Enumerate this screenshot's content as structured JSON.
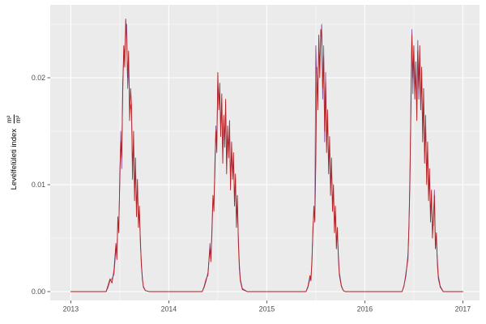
{
  "chart_data": {
    "type": "line",
    "title": "",
    "xlabel": "",
    "ylabel_text": "Levélfelületi index",
    "ylabel_unit_numerator": "m²",
    "ylabel_unit_denominator": "m²",
    "legend": "none",
    "grid": true,
    "panel_background": "#EBEBEB",
    "outer_background": "#FFFFFF",
    "gridline_color": "#FFFFFF",
    "tick_label_color": "#4D4D4D",
    "tick_mark_color": "#333333",
    "xlim": [
      2012.79,
      2017.17
    ],
    "ylim": [
      -0.00083,
      0.02682
    ],
    "x_ticks": [
      2013,
      2014,
      2015,
      2016,
      2017
    ],
    "x_tick_labels": [
      "2013",
      "2014",
      "2015",
      "2016",
      "2017"
    ],
    "x_minor_ticks": [
      2013.5,
      2014.5,
      2015.5,
      2016.5
    ],
    "y_ticks": [
      0.0,
      0.01,
      0.02
    ],
    "y_tick_labels": [
      "0.00",
      "0.01",
      "0.02"
    ],
    "y_minor_ticks": [
      0.005,
      0.015,
      0.025
    ],
    "x": [
      2013.0,
      2013.1,
      2013.2,
      2013.3,
      2013.36,
      2013.38,
      2013.4,
      2013.42,
      2013.44,
      2013.46,
      2013.47,
      2013.48,
      2013.49,
      2013.5,
      2013.51,
      2013.52,
      2013.53,
      2013.54,
      2013.55,
      2013.56,
      2013.57,
      2013.58,
      2013.59,
      2013.6,
      2013.61,
      2013.62,
      2013.63,
      2013.64,
      2013.65,
      2013.66,
      2013.67,
      2013.68,
      2013.69,
      2013.7,
      2013.71,
      2013.72,
      2013.73,
      2013.74,
      2013.76,
      2013.8,
      2013.9,
      2014.0,
      2014.1,
      2014.2,
      2014.3,
      2014.34,
      2014.36,
      2014.38,
      2014.4,
      2014.42,
      2014.43,
      2014.44,
      2014.45,
      2014.46,
      2014.47,
      2014.48,
      2014.49,
      2014.5,
      2014.51,
      2014.52,
      2014.53,
      2014.54,
      2014.55,
      2014.56,
      2014.57,
      2014.58,
      2014.59,
      2014.6,
      2014.61,
      2014.62,
      2014.63,
      2014.64,
      2014.65,
      2014.66,
      2014.67,
      2014.68,
      2014.69,
      2014.7,
      2014.71,
      2014.72,
      2014.73,
      2014.75,
      2014.8,
      2014.9,
      2015.0,
      2015.1,
      2015.2,
      2015.3,
      2015.4,
      2015.42,
      2015.44,
      2015.45,
      2015.46,
      2015.47,
      2015.48,
      2015.49,
      2015.5,
      2015.51,
      2015.52,
      2015.53,
      2015.54,
      2015.55,
      2015.56,
      2015.57,
      2015.58,
      2015.59,
      2015.6,
      2015.61,
      2015.62,
      2015.63,
      2015.64,
      2015.65,
      2015.66,
      2015.67,
      2015.68,
      2015.69,
      2015.7,
      2015.71,
      2015.72,
      2015.73,
      2015.74,
      2015.76,
      2015.78,
      2015.8,
      2015.9,
      2016.0,
      2016.1,
      2016.2,
      2016.3,
      2016.38,
      2016.4,
      2016.42,
      2016.44,
      2016.45,
      2016.46,
      2016.47,
      2016.48,
      2016.49,
      2016.5,
      2016.51,
      2016.52,
      2016.53,
      2016.54,
      2016.55,
      2016.56,
      2016.57,
      2016.58,
      2016.59,
      2016.6,
      2016.61,
      2016.62,
      2016.63,
      2016.64,
      2016.65,
      2016.66,
      2016.67,
      2016.68,
      2016.69,
      2016.7,
      2016.71,
      2016.72,
      2016.73,
      2016.74,
      2016.75,
      2016.77,
      2016.8,
      2016.9,
      2017.0
    ],
    "series": [
      {
        "name": "purple",
        "color": "#8950A0",
        "y": [
          0,
          0,
          0,
          0,
          0,
          0.0004,
          0.001,
          0.0012,
          0.0016,
          0.004,
          0.0038,
          0.0062,
          0.0065,
          0.01,
          0.015,
          0.0115,
          0.0195,
          0.022,
          0.0225,
          0.0245,
          0.025,
          0.019,
          0.0215,
          0.017,
          0.0175,
          0.0165,
          0.0115,
          0.014,
          0.0095,
          0.0115,
          0.008,
          0.0095,
          0.007,
          0.0072,
          0.005,
          0.0024,
          0.0014,
          0.0004,
          0.0001,
          0,
          0,
          0,
          0,
          0,
          0,
          0,
          0.0005,
          0.0012,
          0.0015,
          0.0045,
          0.0032,
          0.0055,
          0.0085,
          0.0085,
          0.011,
          0.0155,
          0.014,
          0.0195,
          0.018,
          0.0185,
          0.0155,
          0.0175,
          0.013,
          0.0155,
          0.0145,
          0.017,
          0.012,
          0.0145,
          0.0135,
          0.015,
          0.0105,
          0.013,
          0.0115,
          0.012,
          0.009,
          0.01,
          0.007,
          0.008,
          0.005,
          0.0026,
          0.0012,
          0.0003,
          0,
          0,
          0,
          0,
          0,
          0,
          0,
          0.0004,
          0.0012,
          0.0014,
          0.0026,
          0.006,
          0.0072,
          0.0075,
          0.023,
          0.0195,
          0.018,
          0.0225,
          0.0215,
          0.0235,
          0.025,
          0.018,
          0.023,
          0.014,
          0.0205,
          0.014,
          0.016,
          0.012,
          0.0135,
          0.01,
          0.0115,
          0.0085,
          0.009,
          0.0065,
          0.0072,
          0.0048,
          0.0052,
          0.0034,
          0.0018,
          0.0006,
          0.0001,
          0,
          0,
          0,
          0,
          0,
          0,
          0,
          0.0005,
          0.0018,
          0.003,
          0.0065,
          0.01,
          0.018,
          0.0245,
          0.0185,
          0.022,
          0.019,
          0.02,
          0.0175,
          0.0235,
          0.018,
          0.022,
          0.018,
          0.02,
          0.015,
          0.018,
          0.013,
          0.0155,
          0.011,
          0.013,
          0.0095,
          0.0105,
          0.0075,
          0.0085,
          0.006,
          0.0062,
          0.0095,
          0.0048,
          0.0045,
          0.003,
          0.0015,
          0.0005,
          0,
          0,
          0
        ]
      },
      {
        "name": "red",
        "color": "#B22222",
        "y": [
          0,
          0,
          0,
          0,
          0,
          0.0006,
          0.0012,
          0.0008,
          0.002,
          0.0045,
          0.003,
          0.007,
          0.0055,
          0.011,
          0.014,
          0.0125,
          0.0185,
          0.023,
          0.021,
          0.0255,
          0.0235,
          0.02,
          0.0225,
          0.016,
          0.019,
          0.0175,
          0.0105,
          0.015,
          0.0085,
          0.0125,
          0.007,
          0.0105,
          0.006,
          0.008,
          0.0045,
          0.0028,
          0.0012,
          0.0005,
          0.0001,
          0,
          0,
          0,
          0,
          0,
          0,
          0,
          0.0004,
          0.001,
          0.0018,
          0.004,
          0.0028,
          0.006,
          0.009,
          0.0075,
          0.012,
          0.015,
          0.013,
          0.0205,
          0.017,
          0.0195,
          0.0145,
          0.0185,
          0.012,
          0.0165,
          0.0135,
          0.018,
          0.011,
          0.0155,
          0.0125,
          0.016,
          0.0095,
          0.014,
          0.0105,
          0.013,
          0.008,
          0.011,
          0.006,
          0.009,
          0.0045,
          0.0022,
          0.001,
          0.0002,
          0,
          0,
          0,
          0,
          0,
          0,
          0,
          0.0005,
          0.0015,
          0.001,
          0.003,
          0.0055,
          0.008,
          0.0065,
          0.012,
          0.021,
          0.017,
          0.024,
          0.02,
          0.0245,
          0.024,
          0.019,
          0.022,
          0.015,
          0.0195,
          0.013,
          0.017,
          0.011,
          0.0145,
          0.009,
          0.0125,
          0.0075,
          0.01,
          0.0055,
          0.008,
          0.004,
          0.006,
          0.003,
          0.0015,
          0.0005,
          0.0001,
          0,
          0,
          0,
          0,
          0,
          0,
          0,
          0.0006,
          0.0015,
          0.0035,
          0.006,
          0.011,
          0.017,
          0.024,
          0.02,
          0.023,
          0.018,
          0.0215,
          0.016,
          0.0225,
          0.019,
          0.023,
          0.017,
          0.021,
          0.014,
          0.019,
          0.012,
          0.0165,
          0.01,
          0.014,
          0.0085,
          0.0115,
          0.0065,
          0.0095,
          0.005,
          0.007,
          0.009,
          0.004,
          0.0055,
          0.0025,
          0.0012,
          0.0004,
          0,
          0,
          0
        ]
      }
    ]
  }
}
